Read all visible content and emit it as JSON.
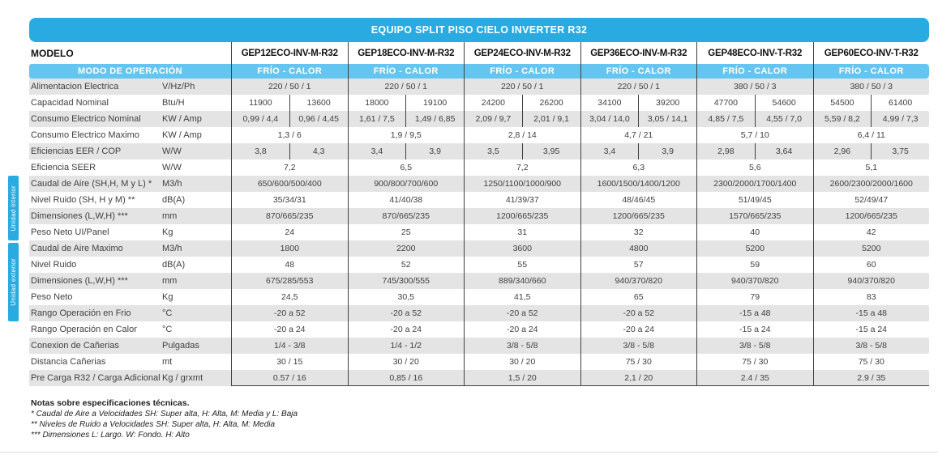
{
  "title": "EQUIPO SPLIT PISO CIELO INVERTER R32",
  "colors": {
    "accent": "#29ABE2",
    "accent_light": "#64C6F0",
    "stripe": "#E4E4E4",
    "line": "#404040"
  },
  "header": {
    "modelo_label": "MODELO",
    "modo_label": "MODO DE OPERACIÓN",
    "mode_cell": "FRÍO - CALOR"
  },
  "models": [
    "GEP12ECO-INV-M-R32",
    "GEP18ECO-INV-M-R32",
    "GEP24ECO-INV-M-R32",
    "GEP36ECO-INV-M-R32",
    "GEP48ECO-INV-T-R32",
    "GEP60ECO-INV-T-R32"
  ],
  "side_labels": {
    "interior": "Unidad interior",
    "exterior": "Unidad exterior"
  },
  "rows": [
    {
      "label": "Alimentacion Electrica",
      "unit": "V/Hz/Ph",
      "split": false,
      "values": [
        "220 / 50 / 1",
        "220 / 50 / 1",
        "220 / 50 / 1",
        "220 / 50 / 1",
        "380 / 50 / 3",
        "380 / 50 / 3"
      ]
    },
    {
      "label": "Capacidad Nominal",
      "unit": "Btu/H",
      "split": true,
      "values": [
        [
          "11900",
          "13600"
        ],
        [
          "18000",
          "19100"
        ],
        [
          "24200",
          "26200"
        ],
        [
          "34100",
          "39200"
        ],
        [
          "47700",
          "54600"
        ],
        [
          "54500",
          "61400"
        ]
      ]
    },
    {
      "label": "Consumo Electrico Nominal",
      "unit": "KW / Amp",
      "split": true,
      "values": [
        [
          "0,99 / 4,4",
          "0,96 / 4,45"
        ],
        [
          "1,61 / 7,5",
          "1,49 / 6,85"
        ],
        [
          "2,09 / 9,7",
          "2,01 / 9,1"
        ],
        [
          "3,04 / 14,0",
          "3,05 / 14,1"
        ],
        [
          "4,85 / 7,5",
          "4,55 / 7,0"
        ],
        [
          "5,59 / 8,2",
          "4,99 / 7,3"
        ]
      ]
    },
    {
      "label": "Consumo Electrico Maximo",
      "unit": "KW / Amp",
      "split": false,
      "values": [
        "1,3 / 6",
        "1,9 / 9,5",
        "2,8 / 14",
        "4,7 / 21",
        "5,7 / 10",
        "6,4 / 11"
      ]
    },
    {
      "label": "Eficiencias EER / COP",
      "unit": "W/W",
      "split": true,
      "values": [
        [
          "3,8",
          "4,3"
        ],
        [
          "3,4",
          "3,9"
        ],
        [
          "3,5",
          "3,95"
        ],
        [
          "3,4",
          "3,9"
        ],
        [
          "2,98",
          "3,64"
        ],
        [
          "2,96",
          "3,75"
        ]
      ]
    },
    {
      "label": "Eficiencia SEER",
      "unit": "W/W",
      "split": false,
      "values": [
        "7,2",
        "6,5",
        "7,2",
        "6,3",
        "5,6",
        "5,1"
      ]
    },
    {
      "label": "Caudal de Aire (SH,H, M y L) *",
      "unit": "M3/h",
      "split": false,
      "values": [
        "650/600/500/400",
        "900/800/700/600",
        "1250/1100/1000/900",
        "1600/1500/1400/1200",
        "2300/2000/1700/1400",
        "2600/2300/2000/1600"
      ]
    },
    {
      "label": "Nivel Ruido (SH, H y M) **",
      "unit": "dB(A)",
      "split": false,
      "values": [
        "35/34/31",
        "41/40/38",
        "41/39/37",
        "48/46/45",
        "51/49/45",
        "52/49/47"
      ]
    },
    {
      "label": "Dimensiones (L,W,H) ***",
      "unit": "mm",
      "split": false,
      "values": [
        "870/665/235",
        "870/665/235",
        "1200/665/235",
        "1200/665/235",
        "1570/665/235",
        "1200/665/235"
      ]
    },
    {
      "label": "Peso Neto UI/Panel",
      "unit": "Kg",
      "split": false,
      "values": [
        "24",
        "25",
        "31",
        "32",
        "40",
        "42"
      ]
    },
    {
      "label": "Caudal de Aire Maximo",
      "unit": "M3/h",
      "split": false,
      "values": [
        "1800",
        "2200",
        "3600",
        "4800",
        "5200",
        "5200"
      ]
    },
    {
      "label": "Nivel Ruido",
      "unit": "dB(A)",
      "split": false,
      "values": [
        "48",
        "52",
        "55",
        "57",
        "59",
        "60"
      ]
    },
    {
      "label": "Dimensiones (L,W,H) ***",
      "unit": "mm",
      "split": false,
      "values": [
        "675/285/553",
        "745/300/555",
        "889/340/660",
        "940/370/820",
        "940/370/820",
        "940/370/820"
      ]
    },
    {
      "label": "Peso Neto",
      "unit": "Kg",
      "split": false,
      "values": [
        "24,5",
        "30,5",
        "41,5",
        "65",
        "79",
        "83"
      ]
    },
    {
      "label": "Rango Operación en Frio",
      "unit": "°C",
      "split": false,
      "values": [
        "-20 a 52",
        "-20 a 52",
        "-20 a 52",
        "-20 a 52",
        "-15 a 48",
        "-15 a 48"
      ]
    },
    {
      "label": "Rango Operación en Calor",
      "unit": "°C",
      "split": false,
      "values": [
        "-20 a 24",
        "-20 a 24",
        "-20 a 24",
        "-20 a 24",
        "-15 a 24",
        "-15 a 24"
      ]
    },
    {
      "label": "Conexion de Cañerias",
      "unit": "Pulgadas",
      "split": false,
      "values": [
        "1/4 - 3/8",
        "1/4 - 1/2",
        "3/8 - 5/8",
        "3/8 - 5/8",
        "3/8 - 5/8",
        "3/8 - 5/8"
      ]
    },
    {
      "label": "Distancia Cañerias",
      "unit": "mt",
      "split": false,
      "values": [
        "30 / 15",
        "30 / 20",
        "30 / 20",
        "75 / 30",
        "75 / 30",
        "75 / 30"
      ]
    },
    {
      "label": "Pre Carga R32 / Carga Adicional",
      "unit": "Kg / grxmt",
      "split": false,
      "values": [
        "0.57 / 16",
        "0,85 / 16",
        "1,5 / 20",
        "2,1 / 20",
        "2.4 / 35",
        "2.9 / 35"
      ]
    }
  ],
  "notes": {
    "title": "Notas sobre especificaciones técnicas.",
    "lines": [
      "* Caudal de Aire a Velocidades SH: Super alta, H: Alta, M: Media y L: Baja",
      "** Niveles de Ruido a Velocidades SH: Super alta, H: Alta, M: Media",
      "*** Dimensiones L: Largo. W: Fondo. H: Alto"
    ]
  }
}
